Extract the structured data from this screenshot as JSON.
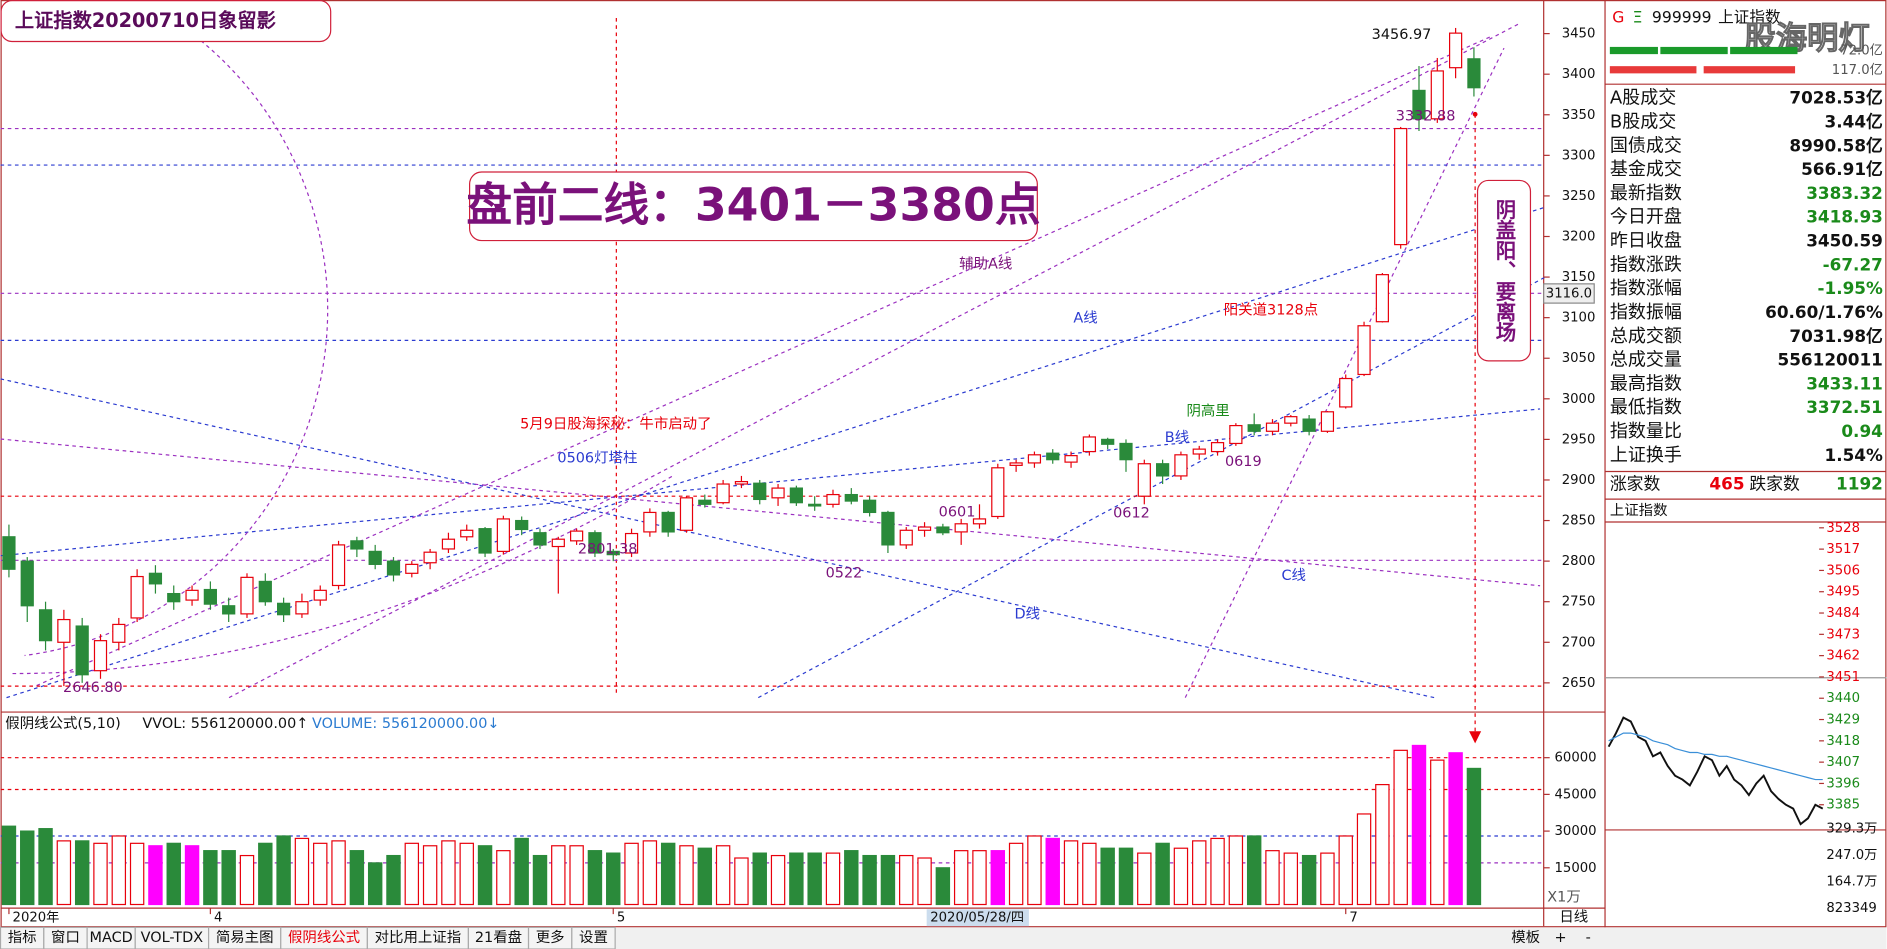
{
  "title_box": "上证指数20200710日象留影",
  "headline": "盘前二线：3401－3380点",
  "vertical_note": "阴盖阳、要离场",
  "chart_data": [
    {
      "type": "candlestick",
      "up_color": "#e8000b",
      "down_color": "#2a8a3a",
      "ohlc": [
        [
          2830,
          2845,
          2780,
          2790
        ],
        [
          2800,
          2805,
          2725,
          2745
        ],
        [
          2740,
          2750,
          2690,
          2702
        ],
        [
          2700,
          2740,
          2646,
          2728
        ],
        [
          2720,
          2730,
          2650,
          2660
        ],
        [
          2665,
          2710,
          2655,
          2702
        ],
        [
          2700,
          2730,
          2690,
          2722
        ],
        [
          2730,
          2790,
          2725,
          2781
        ],
        [
          2785,
          2795,
          2760,
          2772
        ],
        [
          2760,
          2770,
          2740,
          2750
        ],
        [
          2752,
          2770,
          2745,
          2764
        ],
        [
          2765,
          2775,
          2740,
          2747
        ],
        [
          2745,
          2755,
          2725,
          2735
        ],
        [
          2735,
          2785,
          2730,
          2780
        ],
        [
          2775,
          2785,
          2745,
          2750
        ],
        [
          2748,
          2755,
          2725,
          2734
        ],
        [
          2735,
          2760,
          2730,
          2750
        ],
        [
          2752,
          2770,
          2745,
          2764
        ],
        [
          2770,
          2825,
          2765,
          2820
        ],
        [
          2825,
          2830,
          2805,
          2815
        ],
        [
          2812,
          2820,
          2790,
          2796
        ],
        [
          2800,
          2805,
          2775,
          2783
        ],
        [
          2785,
          2800,
          2780,
          2796
        ],
        [
          2798,
          2815,
          2790,
          2811
        ],
        [
          2815,
          2835,
          2810,
          2827
        ],
        [
          2830,
          2845,
          2825,
          2838
        ],
        [
          2840,
          2842,
          2805,
          2810
        ],
        [
          2812,
          2856,
          2808,
          2852
        ],
        [
          2850,
          2855,
          2832,
          2839
        ],
        [
          2835,
          2840,
          2815,
          2820
        ],
        [
          2818,
          2830,
          2760,
          2827
        ],
        [
          2825,
          2840,
          2820,
          2837
        ],
        [
          2835,
          2838,
          2805,
          2810
        ],
        [
          2812,
          2815,
          2800,
          2808
        ],
        [
          2810,
          2840,
          2805,
          2834
        ],
        [
          2836,
          2865,
          2830,
          2860
        ],
        [
          2860,
          2862,
          2830,
          2836
        ],
        [
          2838,
          2880,
          2835,
          2878
        ],
        [
          2875,
          2882,
          2866,
          2870
        ],
        [
          2872,
          2900,
          2870,
          2895
        ],
        [
          2895,
          2905,
          2890,
          2898
        ],
        [
          2896,
          2900,
          2870,
          2876
        ],
        [
          2878,
          2895,
          2868,
          2890
        ],
        [
          2890,
          2893,
          2868,
          2872
        ],
        [
          2870,
          2880,
          2862,
          2868
        ],
        [
          2870,
          2888,
          2866,
          2882
        ],
        [
          2882,
          2890,
          2870,
          2874
        ],
        [
          2875,
          2880,
          2855,
          2860
        ],
        [
          2860,
          2862,
          2810,
          2820
        ],
        [
          2820,
          2842,
          2815,
          2838
        ],
        [
          2838,
          2848,
          2830,
          2842
        ],
        [
          2842,
          2846,
          2832,
          2835
        ],
        [
          2836,
          2852,
          2820,
          2846
        ],
        [
          2846,
          2870,
          2840,
          2852
        ],
        [
          2855,
          2920,
          2852,
          2915
        ],
        [
          2918,
          2925,
          2910,
          2921
        ],
        [
          2921,
          2935,
          2915,
          2931
        ],
        [
          2933,
          2938,
          2920,
          2925
        ],
        [
          2922,
          2935,
          2915,
          2930
        ],
        [
          2935,
          2956,
          2930,
          2953
        ],
        [
          2950,
          2952,
          2938,
          2944
        ],
        [
          2945,
          2950,
          2910,
          2925
        ],
        [
          2880,
          2925,
          2870,
          2920
        ],
        [
          2920,
          2925,
          2895,
          2905
        ],
        [
          2905,
          2935,
          2900,
          2931
        ],
        [
          2932,
          2942,
          2925,
          2938
        ],
        [
          2935,
          2950,
          2930,
          2946
        ],
        [
          2945,
          2970,
          2942,
          2967
        ],
        [
          2968,
          2982,
          2955,
          2960
        ],
        [
          2960,
          2975,
          2955,
          2970
        ],
        [
          2970,
          2980,
          2966,
          2978
        ],
        [
          2975,
          2980,
          2955,
          2960
        ],
        [
          2960,
          2985,
          2958,
          2984
        ],
        [
          2990,
          3030,
          2988,
          3025
        ],
        [
          3030,
          3095,
          3028,
          3090
        ],
        [
          3095,
          3155,
          3094,
          3153
        ],
        [
          3190,
          3335,
          3185,
          3333
        ],
        [
          3380,
          3410,
          3330,
          3345
        ],
        [
          3345,
          3420,
          3340,
          3404
        ],
        [
          3408,
          3456.97,
          3395,
          3450.59
        ],
        [
          3418.93,
          3433.11,
          3372.51,
          3383.32
        ]
      ],
      "categories": [
        "2020年",
        null,
        null,
        null,
        null,
        null,
        null,
        null,
        null,
        null,
        null,
        "4",
        null,
        null,
        null,
        null,
        null,
        null,
        null,
        null,
        null,
        null,
        null,
        null,
        null,
        null,
        null,
        null,
        null,
        null,
        null,
        null,
        null,
        "5",
        null,
        null,
        null,
        null,
        null,
        null,
        null,
        null,
        null,
        null,
        null,
        null,
        null,
        null,
        null,
        null,
        null,
        null,
        null,
        null,
        null,
        null,
        null,
        null,
        null,
        null,
        null,
        null,
        null,
        null,
        null,
        null,
        null,
        null,
        null,
        null,
        null,
        null,
        null,
        "7",
        null,
        null,
        null,
        null,
        null,
        null,
        null
      ],
      "ylim": [
        2617,
        3484
      ],
      "yticks": [
        2650,
        2700,
        2750,
        2800,
        2850,
        2900,
        2950,
        3000,
        3050,
        3100,
        3150,
        3200,
        3250,
        3300,
        3350,
        3400,
        3450
      ],
      "levels": [
        {
          "value": 3333,
          "color": "#9b30c0"
        },
        {
          "value": 3288,
          "color": "#2b3bd0"
        },
        {
          "value": 3130,
          "color": "#9b30c0"
        },
        {
          "value": 3072,
          "color": "#2b3bd0"
        },
        {
          "value": 2880,
          "color": "#e8000b"
        },
        {
          "value": 2801,
          "color": "#9b30c0"
        },
        {
          "value": 2646,
          "color": "#e8000b"
        }
      ],
      "annotations": [
        "3456.97",
        "3332.88",
        "辅助A线",
        "A线",
        "阳关道3128点",
        "阴高里",
        "B线",
        "0619",
        "0612",
        "0601",
        "0522",
        "C线",
        "D线",
        "5月9日股海探秘：牛市启动了",
        "0506灯塔柱",
        "2801.38",
        "2646.80",
        "3116.0",
        "2020/05/28/四"
      ]
    },
    {
      "type": "bar",
      "header": [
        "假阴线公式(5,10)",
        "VVOL: 556120000.00↑",
        "VOLUME: 556120000.00↓"
      ],
      "unit_label": "X1万",
      "values": [
        32000,
        30000,
        31000,
        26000,
        26000,
        25000,
        28000,
        25000,
        24000,
        25000,
        24000,
        22000,
        22000,
        20000,
        25000,
        28000,
        27000,
        25000,
        26000,
        22000,
        17000,
        20000,
        25000,
        24000,
        26000,
        25000,
        24000,
        22000,
        27000,
        20000,
        24000,
        24000,
        22000,
        21000,
        25000,
        26000,
        25000,
        24000,
        23000,
        24000,
        19000,
        21000,
        20000,
        21000,
        21000,
        21000,
        22000,
        20000,
        20000,
        20000,
        19000,
        15000,
        22000,
        22000,
        22000,
        25000,
        28000,
        27000,
        26000,
        25000,
        23000,
        23000,
        21000,
        25000,
        23000,
        26000,
        27000,
        28000,
        28000,
        22000,
        21000,
        20000,
        21000,
        28000,
        37000,
        49000,
        63000,
        65000,
        59000,
        62000,
        55612
      ],
      "colors": [
        "#2a8a3a",
        "#2a8a3a",
        "#2a8a3a",
        "#e8000b",
        "#2a8a3a",
        "#e8000b",
        "#e8000b",
        "#e8000b",
        "#ff00ff",
        "#2a8a3a",
        "#ff00ff",
        "#2a8a3a",
        "#2a8a3a",
        "#e8000b",
        "#2a8a3a",
        "#2a8a3a",
        "#e8000b",
        "#e8000b",
        "#e8000b",
        "#2a8a3a",
        "#2a8a3a",
        "#2a8a3a",
        "#e8000b",
        "#e8000b",
        "#e8000b",
        "#e8000b",
        "#2a8a3a",
        "#e8000b",
        "#2a8a3a",
        "#2a8a3a",
        "#e8000b",
        "#e8000b",
        "#2a8a3a",
        "#2a8a3a",
        "#e8000b",
        "#e8000b",
        "#2a8a3a",
        "#e8000b",
        "#2a8a3a",
        "#e8000b",
        "#e8000b",
        "#2a8a3a",
        "#e8000b",
        "#2a8a3a",
        "#2a8a3a",
        "#e8000b",
        "#2a8a3a",
        "#2a8a3a",
        "#2a8a3a",
        "#e8000b",
        "#e8000b",
        "#2a8a3a",
        "#e8000b",
        "#e8000b",
        "#ff00ff",
        "#e8000b",
        "#e8000b",
        "#ff00ff",
        "#e8000b",
        "#e8000b",
        "#2a8a3a",
        "#2a8a3a",
        "#e8000b",
        "#2a8a3a",
        "#e8000b",
        "#e8000b",
        "#e8000b",
        "#e8000b",
        "#2a8a3a",
        "#e8000b",
        "#e8000b",
        "#2a8a3a",
        "#e8000b",
        "#e8000b",
        "#e8000b",
        "#e8000b",
        "#e8000b",
        "#ff00ff",
        "#e8000b",
        "#ff00ff",
        "#2a8a3a"
      ],
      "up_color": "#e8000b",
      "ylim": [
        0,
        75700
      ],
      "yticks": [
        15000,
        30000,
        45000,
        60000
      ],
      "levels": [
        {
          "value": 60000,
          "color": "#e8000b"
        },
        {
          "value": 47000,
          "color": "#e8000b"
        },
        {
          "value": 28000,
          "color": "#2b3bd0"
        },
        {
          "value": 17000,
          "color": "#9b30c0"
        }
      ]
    },
    {
      "type": "line",
      "title": "上证指数",
      "baseline": 3450.59,
      "ylim": [
        3372,
        3531
      ],
      "yticks": [
        3528,
        3517,
        3506,
        3495,
        3484,
        3473,
        3462,
        3451,
        3440,
        3429,
        3418,
        3407,
        3396,
        3385
      ],
      "vol_ticks": [
        "329.3万",
        "247.0万",
        "164.7万",
        "823349"
      ],
      "series": [
        {
          "color": "#111111",
          "values": [
            3415,
            3422,
            3430,
            3428,
            3420,
            3418,
            3410,
            3412,
            3405,
            3400,
            3398,
            3395,
            3402,
            3410,
            3408,
            3400,
            3405,
            3398,
            3395,
            3390,
            3396,
            3400,
            3392,
            3388,
            3385,
            3383,
            3375,
            3378,
            3385,
            3383
          ]
        },
        {
          "color": "#3a8fd8",
          "values": [
            3418,
            3420,
            3422,
            3422,
            3421,
            3420,
            3418,
            3417,
            3416,
            3414,
            3413,
            3412,
            3412,
            3411,
            3411,
            3410,
            3410,
            3409,
            3408,
            3407,
            3406,
            3405,
            3404,
            3403,
            3402,
            3401,
            3400,
            3399,
            3398,
            3398
          ]
        }
      ]
    }
  ],
  "quote_panel": {
    "flag_g": "G",
    "flag_e": "Ξ",
    "code": "999999",
    "name": "上证指数",
    "watermark": "股海明灯",
    "buy_amount": "72.0亿",
    "sell_amount": "117.0亿",
    "rows": [
      {
        "label": "A股成交",
        "value": "7028.53亿",
        "color": "#111"
      },
      {
        "label": "B股成交",
        "value": "3.44亿",
        "color": "#111"
      },
      {
        "label": "国债成交",
        "value": "8990.58亿",
        "color": "#111"
      },
      {
        "label": "基金成交",
        "value": "566.91亿",
        "color": "#111"
      },
      {
        "label": "最新指数",
        "value": "3383.32",
        "color": "#1a8a1a"
      },
      {
        "label": "今日开盘",
        "value": "3418.93",
        "color": "#1a8a1a"
      },
      {
        "label": "昨日收盘",
        "value": "3450.59",
        "color": "#111"
      },
      {
        "label": "指数涨跌",
        "value": "-67.27",
        "color": "#1a8a1a"
      },
      {
        "label": "指数涨幅",
        "value": "-1.95%",
        "color": "#1a8a1a"
      },
      {
        "label": "指数振幅",
        "value": "60.60/1.76%",
        "color": "#111"
      },
      {
        "label": "总成交额",
        "value": "7031.98亿",
        "color": "#111"
      },
      {
        "label": "总成交量",
        "value": "556120011",
        "color": "#111"
      },
      {
        "label": "最高指数",
        "value": "3433.11",
        "color": "#1a8a1a"
      },
      {
        "label": "最低指数",
        "value": "3372.51",
        "color": "#1a8a1a"
      },
      {
        "label": "指数量比",
        "value": "0.94",
        "color": "#1a8a1a"
      },
      {
        "label": "上证换手",
        "value": "1.54%",
        "color": "#111"
      }
    ],
    "up_label": "涨家数",
    "up_count": "465",
    "down_label": "跌家数",
    "down_count": "1192"
  },
  "tabs": [
    "指标",
    "窗口",
    "MACD",
    "VOL-TDX",
    "简易主图",
    "假阴线公式",
    "对比用上证指",
    "21看盘",
    "更多",
    "设置"
  ],
  "active_tab": "假阴线公式",
  "corner": {
    "template": "模板",
    "period": "日线",
    "plus": "+",
    "minus": "-"
  }
}
